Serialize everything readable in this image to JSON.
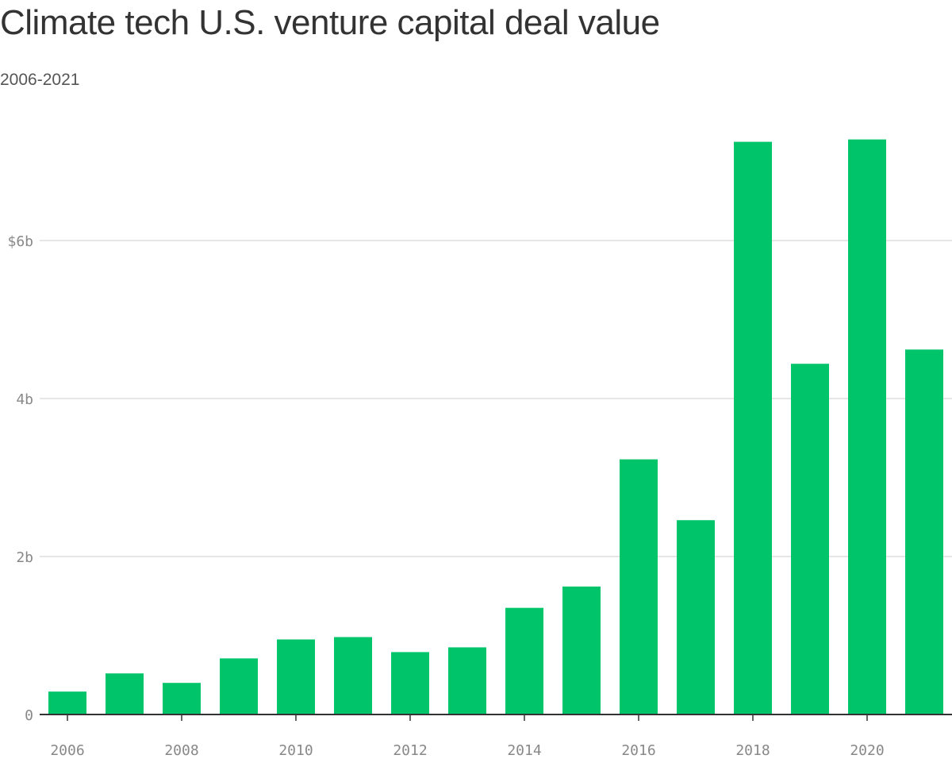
{
  "chart_data": {
    "type": "bar",
    "title": "Climate tech U.S. venture capital deal value",
    "subtitle": "2006-2021",
    "categories": [
      "2006",
      "2007",
      "2008",
      "2009",
      "2010",
      "2011",
      "2012",
      "2013",
      "2014",
      "2015",
      "2016",
      "2017",
      "2018",
      "2019",
      "2020",
      "2021"
    ],
    "values": [
      0.29,
      0.52,
      0.4,
      0.71,
      0.95,
      0.98,
      0.79,
      0.85,
      1.35,
      1.62,
      3.23,
      2.46,
      7.25,
      4.44,
      7.28,
      4.62
    ],
    "value_unit": "billions USD",
    "xlabel": "",
    "ylabel": "",
    "ylim": [
      0,
      7.5
    ],
    "y_ticks": [
      {
        "value": 0,
        "label": "0"
      },
      {
        "value": 2,
        "label": "2b"
      },
      {
        "value": 4,
        "label": "4b"
      },
      {
        "value": 6,
        "label": "$6b"
      }
    ],
    "x_tick_labels": [
      "2006",
      "2008",
      "2010",
      "2012",
      "2014",
      "2016",
      "2018",
      "2020"
    ],
    "grid": true,
    "legend": "none",
    "colors": {
      "bar": "#00c46a",
      "grid": "#dddddd",
      "axis": "#333333",
      "tick_text": "#888888",
      "title": "#333333",
      "subtitle": "#555555"
    }
  }
}
